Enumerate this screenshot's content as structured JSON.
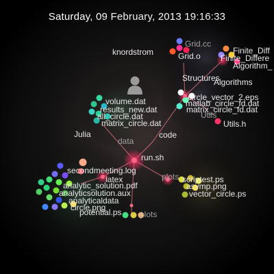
{
  "timestamp": "Saturday, 09 February, 2013 19:16:33",
  "colors": {
    "background": "#000000",
    "edge": "#c86a7a",
    "hub_glow": "#ff3366",
    "text": "#e8e8e8"
  },
  "user": {
    "name": "knordstrom",
    "icon": "person-icon"
  },
  "dir_labels": [
    "Julia",
    "data",
    "code",
    "latex",
    "plots",
    "plots",
    "Structures",
    "Utils",
    "Algorithms"
  ],
  "file_labels": [
    "Grid.cc",
    "Grid.o",
    "Finite_Diff",
    "Finite_Differe",
    "Algorithm_",
    "circle_vector_2.eps",
    "matlab_circle_fd.dat",
    "matrix_circle_fd.dat",
    "Utils.h",
    "volume.dat",
    "results_new.dat",
    "all_circle.dat",
    "matrix_circle.dat",
    "run.sh",
    "secondmeeting.log",
    "analytic_solution.pdf",
    "analyticsolution.aux",
    "analyticaldata",
    "circle.png",
    "potential.ps",
    "scriptest.ps",
    "asymp.png",
    "vector_circle.ps"
  ]
}
